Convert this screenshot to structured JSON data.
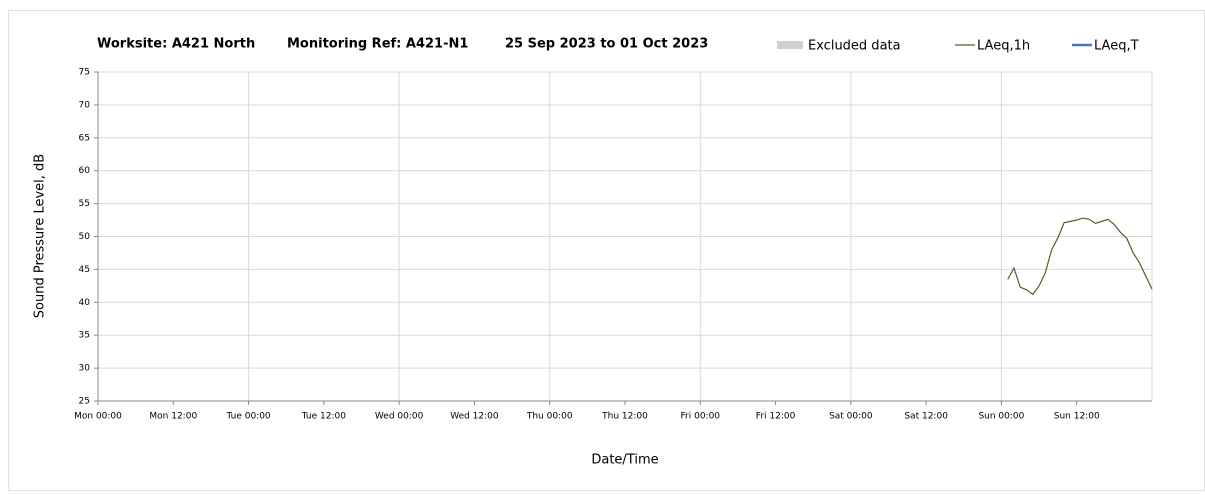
{
  "chart_data": {
    "type": "line",
    "title_parts": [
      "Worksite: A421 North",
      "Monitoring Ref: A421-N1",
      "25 Sep 2023 to 01 Oct 2023"
    ],
    "xlabel": "Date/Time",
    "ylabel": "Sound Pressure Level, dB",
    "excluded": {
      "name": "Excluded data",
      "color": "#d0d0d0"
    },
    "x": [
      145,
      146,
      147,
      148,
      149,
      150,
      151,
      152,
      153,
      154,
      155,
      156,
      157,
      158,
      159,
      160,
      161,
      162,
      163,
      164,
      165,
      166,
      167,
      168
    ],
    "series": [
      {
        "name": "LAeq,1h",
        "color": "#4f6228",
        "values": [
          43.5,
          45.2,
          42.3,
          41.9,
          41.2,
          42.5,
          44.5,
          48,
          49.8,
          52.1,
          52.3,
          52.5,
          52.8,
          52.6,
          52,
          52.3,
          52.6,
          51.8,
          50.6,
          49.7,
          47.5,
          46,
          44,
          42
        ]
      },
      {
        "name": "LAeq,T",
        "color": "#4472c4",
        "values": [
          null,
          null,
          null,
          null,
          null,
          null,
          null,
          null,
          null,
          null,
          null,
          null,
          null,
          null,
          null,
          null,
          null,
          null,
          null,
          null,
          null,
          null,
          null,
          null
        ]
      }
    ],
    "xlim": [
      0,
      168
    ],
    "xticks": [
      {
        "value": 0,
        "label": "Mon 00:00"
      },
      {
        "value": 12,
        "label": "Mon 12:00"
      },
      {
        "value": 24,
        "label": "Tue 00:00"
      },
      {
        "value": 36,
        "label": "Tue 12:00"
      },
      {
        "value": 48,
        "label": "Wed 00:00"
      },
      {
        "value": 60,
        "label": "Wed 12:00"
      },
      {
        "value": 72,
        "label": "Thu 00:00"
      },
      {
        "value": 84,
        "label": "Thu 12:00"
      },
      {
        "value": 96,
        "label": "Fri 00:00"
      },
      {
        "value": 108,
        "label": "Fri 12:00"
      },
      {
        "value": 120,
        "label": "Sat 00:00"
      },
      {
        "value": 132,
        "label": "Sat 12:00"
      },
      {
        "value": 144,
        "label": "Sun 00:00"
      },
      {
        "value": 156,
        "label": "Sun 12:00"
      }
    ],
    "ylim": [
      25,
      75
    ],
    "yticks": [
      25,
      30,
      35,
      40,
      45,
      50,
      55,
      60,
      65,
      70,
      75
    ],
    "grid": true
  }
}
